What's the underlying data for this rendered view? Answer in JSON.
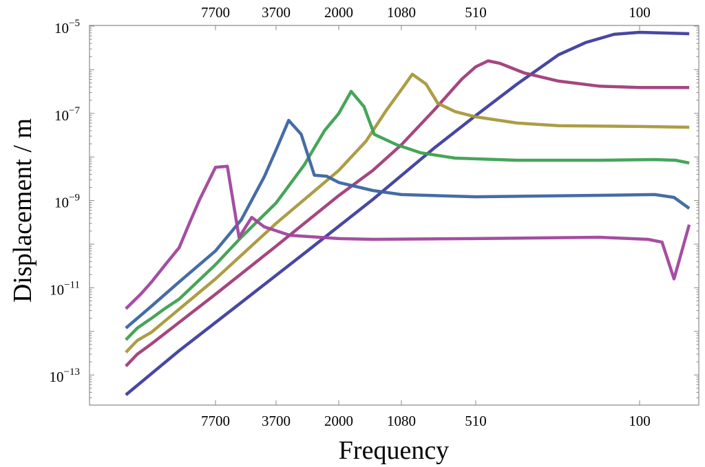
{
  "chart_data": {
    "type": "line",
    "title": "",
    "xlabel": "Frequency",
    "ylabel": "Displacement / m",
    "x_scale": "log-reversed",
    "y_scale": "log",
    "ylim": [
      1.2e-14,
      1.2e-05
    ],
    "grid": false,
    "legend": "none",
    "x_ticks": [
      7700,
      3700,
      2000,
      1080,
      510,
      100
    ],
    "x_tick_labels": [
      "7700",
      "3700",
      "2000",
      "1080",
      "510",
      "100"
    ],
    "x_ticks_top": true,
    "y_ticks": [
      1e-05,
      1e-07,
      1e-09,
      1e-11,
      1e-13
    ],
    "y_tick_labels": [
      {
        "base": "10",
        "exp": "−5"
      },
      {
        "base": "10",
        "exp": "−7"
      },
      {
        "base": "10",
        "exp": "−9"
      },
      {
        "base": "10",
        "exp": "−11"
      },
      {
        "base": "10",
        "exp": "−13"
      }
    ],
    "series": [
      {
        "color": "#3d3d9e",
        "x": [
          23000,
          12000,
          5640,
          2720,
          1430,
          776,
          510,
          338,
          224,
          171,
          129,
          100,
          61
        ],
        "y": [
          3.5e-14,
          3.6e-13,
          4.6e-12,
          7e-11,
          1.06e-09,
          1.6e-08,
          8.9e-08,
          4.7e-07,
          2.2e-06,
          4.2e-06,
          6.5e-06,
          7.2e-06,
          6.7e-06
        ]
      },
      {
        "color": "#a03c78",
        "x": [
          23000,
          20000,
          16800,
          7700,
          3700,
          2000,
          1430,
          1080,
          776,
          587,
          510,
          451,
          401,
          316,
          224,
          149,
          100,
          61
        ],
        "y": [
          1.6e-13,
          3e-13,
          5.2e-13,
          7.1e-12,
          9e-11,
          1.3e-09,
          4.9e-09,
          1.9e-08,
          1.19e-07,
          6.1e-07,
          1.17e-06,
          1.6e-06,
          1.4e-06,
          8.5e-07,
          5.5e-07,
          4.2e-07,
          3.9e-07,
          3.9e-07
        ]
      },
      {
        "color": "#a8983c",
        "x": [
          23000,
          20000,
          16800,
          7700,
          3700,
          2000,
          1530,
          1250,
          1080,
          967,
          842,
          748,
          629,
          510,
          338,
          224,
          100,
          61
        ],
        "y": [
          3.3e-13,
          6.2e-13,
          9.6e-13,
          1.6e-11,
          3e-10,
          4.9e-09,
          2.3e-08,
          1.19e-07,
          3.5e-07,
          7.9e-07,
          4.7e-07,
          1.7e-07,
          1.1e-07,
          8.3e-08,
          6e-08,
          5.2e-08,
          5e-08,
          4.8e-08
        ]
      },
      {
        "color": "#3ca050",
        "x": [
          23000,
          20000,
          16800,
          14200,
          12000,
          7700,
          5640,
          3700,
          2810,
          2300,
          2000,
          1770,
          1560,
          1410,
          1130,
          890,
          629,
          338,
          149,
          86,
          70,
          61
        ],
        "y": [
          6.4e-13,
          1.19e-12,
          2e-12,
          3.4e-12,
          5.5e-12,
          3.4e-11,
          1.44e-10,
          8.8e-10,
          6.5e-09,
          4e-08,
          9.9e-08,
          3.2e-07,
          1.43e-07,
          3.3e-08,
          1.9e-08,
          1.25e-08,
          9.4e-09,
          8.4e-09,
          8.4e-09,
          8.7e-09,
          8.4e-09,
          7.3e-09
        ]
      },
      {
        "color": "#3c64a0",
        "x": [
          23000,
          16800,
          12000,
          7700,
          5640,
          4270,
          3700,
          3270,
          2890,
          2540,
          2250,
          2000,
          1430,
          1080,
          510,
          149,
          86,
          71,
          61
        ],
        "y": [
          1.19e-12,
          3.8e-12,
          1.36e-11,
          7e-11,
          3.6e-10,
          3.5e-09,
          1.45e-08,
          6.9e-08,
          3.3e-08,
          3.8e-09,
          3.6e-09,
          2.6e-09,
          1.7e-09,
          1.37e-09,
          1.22e-09,
          1.32e-09,
          1.37e-09,
          1.18e-09,
          6.6e-10
        ]
      },
      {
        "color": "#a0449c",
        "x": [
          23000,
          19100,
          16800,
          14200,
          12000,
          10600,
          9340,
          7700,
          6670,
          5790,
          4970,
          4270,
          3230,
          2000,
          1430,
          510,
          149,
          92,
          80,
          71,
          61
        ],
        "y": [
          3.3e-12,
          7.3e-12,
          1.36e-11,
          3.4e-11,
          8.3e-11,
          3e-10,
          1.06e-09,
          5.8e-09,
          6.1e-09,
          1.44e-10,
          4.1e-10,
          2.5e-10,
          1.6e-10,
          1.34e-10,
          1.29e-10,
          1.34e-10,
          1.44e-10,
          1.29e-10,
          1.11e-10,
          1.6e-11,
          2.8e-10
        ]
      }
    ]
  }
}
